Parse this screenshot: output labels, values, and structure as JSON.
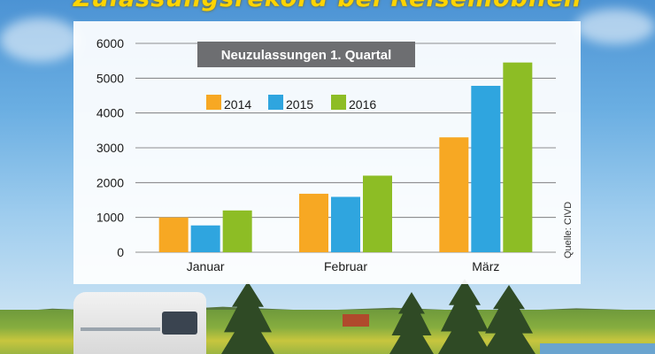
{
  "header": {
    "title": "Zulassungsrekord bei Reisemobilen"
  },
  "source_label": "Quelle: CIVD",
  "colors": {
    "2014": "#f7a823",
    "2015": "#2fa5df",
    "2016": "#8dbd25",
    "subtitle_bg": "#6d6e71"
  },
  "chart_data": {
    "type": "bar",
    "title": "Neuzulassungen 1. Quartal",
    "categories": [
      "Januar",
      "Februar",
      "März"
    ],
    "series": [
      {
        "name": "2014",
        "values": [
          1000,
          1680,
          3300
        ]
      },
      {
        "name": "2015",
        "values": [
          770,
          1590,
          4780
        ]
      },
      {
        "name": "2016",
        "values": [
          1200,
          2200,
          5450
        ]
      }
    ],
    "ylim": [
      0,
      6000
    ],
    "yticks": [
      "0",
      "1000",
      "2000",
      "3000",
      "4000",
      "5000",
      "6000"
    ],
    "grid": true,
    "legend": "top-left"
  }
}
